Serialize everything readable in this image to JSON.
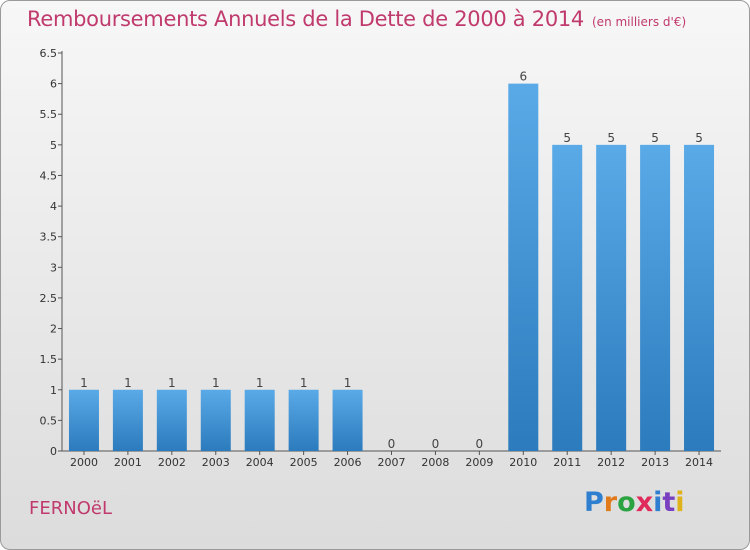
{
  "header": {
    "title": "Remboursements Annuels de la Dette de 2000 à 2014",
    "unit": "(en milliers d'€)"
  },
  "footer": {
    "commune": "FERNOëL",
    "logo_letters": [
      "P",
      "r",
      "o",
      "x",
      "i",
      "t",
      "i"
    ]
  },
  "colors": {
    "title": "#c03a6d",
    "bar_top": "#5aaae8",
    "bar_bottom": "#2b7bbd",
    "logo": [
      "#2f7fd0",
      "#e07a1a",
      "#2aa340",
      "#e02a5a",
      "#2f7fd0",
      "#7a3fc0",
      "#e0b21a"
    ]
  },
  "chart_data": {
    "type": "bar",
    "categories": [
      "2000",
      "2001",
      "2002",
      "2003",
      "2004",
      "2005",
      "2006",
      "2007",
      "2008",
      "2009",
      "2010",
      "2011",
      "2012",
      "2013",
      "2014"
    ],
    "values": [
      1,
      1,
      1,
      1,
      1,
      1,
      1,
      0,
      0,
      0,
      6,
      5,
      5,
      5,
      5
    ],
    "data_labels": [
      "1",
      "1",
      "1",
      "1",
      "1",
      "1",
      "1",
      "0",
      "0",
      "0",
      "6",
      "5",
      "5",
      "5",
      "5"
    ],
    "ylim": [
      0,
      6.5
    ],
    "yticks": [
      0,
      0.5,
      1,
      1.5,
      2,
      2.5,
      3,
      3.5,
      4,
      4.5,
      5,
      5.5,
      6,
      6.5
    ],
    "ytick_labels": [
      "0",
      "0.5",
      "1",
      "1.5",
      "2",
      "2.5",
      "3",
      "3.5",
      "4",
      "4.5",
      "5",
      "5.5",
      "6",
      "6.5"
    ],
    "grid": false,
    "legend": "none"
  }
}
